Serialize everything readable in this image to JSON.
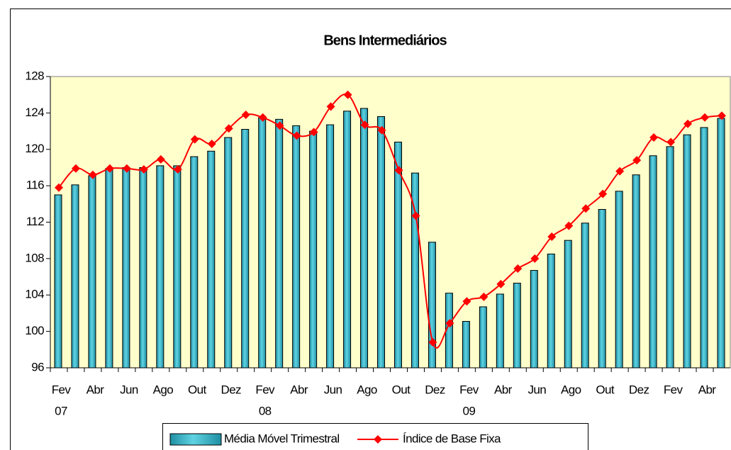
{
  "chart_data": {
    "type": "bar-line",
    "title": "Bens Intermediários",
    "categories": [
      [
        "Fev",
        "07"
      ],
      null,
      "Abr",
      null,
      "Jun",
      null,
      "Ago",
      null,
      "Out",
      null,
      "Dez",
      null,
      [
        "Fev",
        "08"
      ],
      null,
      "Abr",
      null,
      "Jun",
      null,
      "Ago",
      null,
      "Out",
      null,
      "Dez",
      null,
      [
        "Fev",
        "09"
      ],
      null,
      "Abr",
      null,
      "Jun",
      null,
      "Ago",
      null,
      "Out",
      null,
      "Dez",
      null,
      "Fev",
      null,
      "Abr",
      null
    ],
    "series": [
      {
        "name": "Média Móvel Trimestral",
        "kind": "bar",
        "color": "#33b5c8",
        "values": [
          115.0,
          116.1,
          117.1,
          117.9,
          118.0,
          118.0,
          118.2,
          118.2,
          119.2,
          119.8,
          121.3,
          122.2,
          123.5,
          123.3,
          122.6,
          122.0,
          122.7,
          124.2,
          124.5,
          123.6,
          120.8,
          117.4,
          109.8,
          104.2,
          101.1,
          102.7,
          104.1,
          105.3,
          106.7,
          108.5,
          110.0,
          111.9,
          113.4,
          115.4,
          117.2,
          119.3,
          120.3,
          121.6,
          122.4,
          123.4
        ]
      },
      {
        "name": "Índice de Base Fixa",
        "kind": "line",
        "color": "#ff0000",
        "values": [
          115.8,
          117.9,
          117.2,
          117.9,
          117.9,
          117.8,
          118.9,
          117.8,
          121.1,
          120.6,
          122.3,
          123.8,
          123.5,
          122.6,
          121.5,
          121.9,
          124.7,
          126.0,
          122.7,
          122.1,
          117.7,
          112.7,
          98.8,
          100.9,
          103.3,
          103.8,
          105.2,
          106.9,
          108.0,
          110.4,
          111.6,
          113.5,
          115.1,
          117.6,
          118.8,
          121.3,
          120.8,
          122.8,
          123.5,
          123.7
        ]
      }
    ],
    "ylim": [
      96,
      128
    ],
    "yticks": [
      96,
      100,
      104,
      108,
      112,
      116,
      120,
      124,
      128
    ],
    "grid": false,
    "legend": "bottom"
  }
}
